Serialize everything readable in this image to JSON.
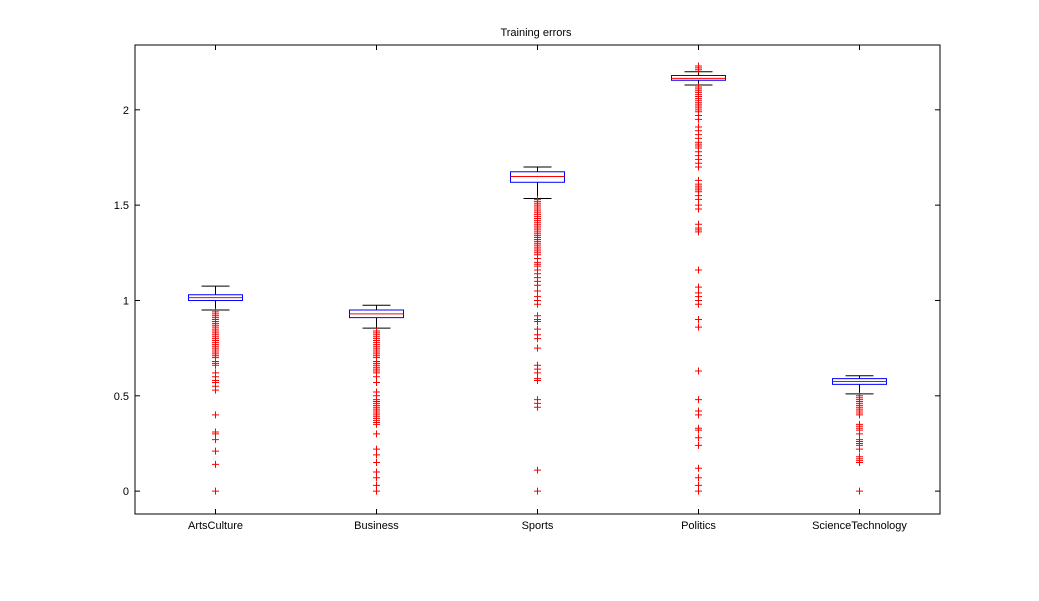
{
  "chart_data": {
    "type": "box",
    "title": "Training errors",
    "xlabel": "",
    "ylabel": "",
    "ylim": [
      -0.12,
      2.34
    ],
    "yticks": [
      0,
      0.5,
      1,
      1.5,
      2
    ],
    "ytick_labels": [
      "0",
      "0.5",
      "1",
      "1.5",
      "2"
    ],
    "categories": [
      "ArtsCulture",
      "Business",
      "Sports",
      "Politics",
      "ScienceTechnology"
    ],
    "grid": false,
    "colors": {
      "box": "#0000ff",
      "median": "#ff0000",
      "whisker": "#000000",
      "outlier": "#ff0000",
      "axis": "#000000"
    },
    "boxes": [
      {
        "category": "ArtsCulture",
        "whisker_low": 0.95,
        "q1": 1.0,
        "median": 1.015,
        "q3": 1.03,
        "whisker_high": 1.075,
        "outliers": [
          0.0,
          0.14,
          0.21,
          0.27,
          0.3,
          0.31,
          0.4,
          0.53,
          0.55,
          0.57,
          0.58,
          0.6,
          0.62,
          0.66,
          0.67,
          0.68,
          0.7,
          0.71,
          0.72,
          0.73,
          0.74,
          0.75,
          0.76,
          0.77,
          0.78,
          0.79,
          0.8,
          0.81,
          0.82,
          0.83,
          0.84,
          0.85,
          0.86,
          0.87,
          0.88,
          0.89,
          0.9,
          0.91,
          0.92,
          0.93,
          0.94
        ]
      },
      {
        "category": "Business",
        "whisker_low": 0.855,
        "q1": 0.91,
        "median": 0.93,
        "q3": 0.95,
        "whisker_high": 0.975,
        "outliers": [
          0.0,
          0.03,
          0.07,
          0.1,
          0.15,
          0.19,
          0.22,
          0.3,
          0.35,
          0.36,
          0.37,
          0.38,
          0.39,
          0.4,
          0.41,
          0.42,
          0.43,
          0.44,
          0.45,
          0.46,
          0.47,
          0.48,
          0.5,
          0.52,
          0.57,
          0.6,
          0.62,
          0.63,
          0.64,
          0.65,
          0.66,
          0.67,
          0.68,
          0.7,
          0.71,
          0.72,
          0.73,
          0.74,
          0.75,
          0.76,
          0.77,
          0.78,
          0.79,
          0.8,
          0.81,
          0.82,
          0.83,
          0.84
        ]
      },
      {
        "category": "Sports",
        "whisker_low": 1.535,
        "q1": 1.62,
        "median": 1.65,
        "q3": 1.675,
        "whisker_high": 1.7,
        "outliers": [
          0.0,
          0.11,
          0.44,
          0.46,
          0.48,
          0.58,
          0.59,
          0.62,
          0.64,
          0.66,
          0.75,
          0.8,
          0.82,
          0.85,
          0.89,
          0.9,
          0.92,
          0.98,
          1.0,
          1.02,
          1.05,
          1.08,
          1.1,
          1.12,
          1.14,
          1.16,
          1.18,
          1.19,
          1.2,
          1.22,
          1.24,
          1.25,
          1.26,
          1.27,
          1.28,
          1.29,
          1.3,
          1.31,
          1.32,
          1.33,
          1.34,
          1.35,
          1.36,
          1.37,
          1.38,
          1.39,
          1.4,
          1.41,
          1.42,
          1.43,
          1.44,
          1.45,
          1.46,
          1.47,
          1.48,
          1.49,
          1.5,
          1.51,
          1.52,
          1.53
        ]
      },
      {
        "category": "Politics",
        "whisker_low": 2.13,
        "q1": 2.155,
        "median": 2.165,
        "q3": 2.18,
        "whisker_high": 2.2,
        "outliers": [
          0.0,
          0.03,
          0.07,
          0.12,
          0.24,
          0.28,
          0.32,
          0.33,
          0.4,
          0.42,
          0.48,
          0.63,
          0.86,
          0.9,
          0.98,
          1.0,
          1.02,
          1.04,
          1.07,
          1.16,
          1.36,
          1.37,
          1.38,
          1.4,
          1.48,
          1.5,
          1.53,
          1.55,
          1.57,
          1.58,
          1.59,
          1.6,
          1.61,
          1.63,
          1.7,
          1.72,
          1.74,
          1.76,
          1.78,
          1.8,
          1.81,
          1.82,
          1.83,
          1.85,
          1.87,
          1.89,
          1.91,
          1.95,
          1.97,
          1.99,
          2.0,
          2.01,
          2.02,
          2.03,
          2.04,
          2.05,
          2.06,
          2.07,
          2.08,
          2.09,
          2.1,
          2.11,
          2.12,
          2.21,
          2.22,
          2.23
        ]
      },
      {
        "category": "ScienceTechnology",
        "whisker_low": 0.51,
        "q1": 0.56,
        "median": 0.575,
        "q3": 0.59,
        "whisker_high": 0.605,
        "outliers": [
          0.0,
          0.15,
          0.16,
          0.17,
          0.18,
          0.22,
          0.24,
          0.25,
          0.26,
          0.27,
          0.3,
          0.32,
          0.33,
          0.34,
          0.35,
          0.4,
          0.41,
          0.42,
          0.43,
          0.44,
          0.45,
          0.46,
          0.47,
          0.48,
          0.49,
          0.5
        ]
      }
    ]
  }
}
